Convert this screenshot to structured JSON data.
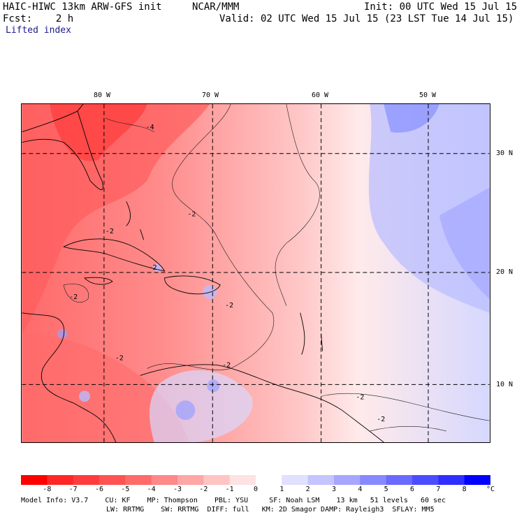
{
  "header": {
    "title": "HAIC-HIWC 13km ARW-GFS init",
    "center": "NCAR/MMM",
    "init": "Init: 00 UTC Wed 15 Jul 15",
    "fcst": "Fcst:    2 h",
    "valid": "Valid: 02 UTC Wed 15 Jul 15 (23 LST Tue 14 Jul 15)",
    "field": "Lifted index"
  },
  "axes": {
    "lon_labels": [
      "80 W",
      "70 W",
      "60 W",
      "50 W"
    ],
    "lat_labels": [
      "30 N",
      "20 N",
      "10 N"
    ]
  },
  "contour_labels": [
    "-4",
    "-2",
    "-2",
    "-2",
    "-2",
    "-2",
    "-2",
    "-2",
    "-2",
    "-2"
  ],
  "colorbar": {
    "labels": [
      "-8",
      "-7",
      "-6",
      "-5",
      "-4",
      "-3",
      "-2",
      "-1",
      "0",
      "1",
      "2",
      "3",
      "4",
      "5",
      "6",
      "7",
      "8"
    ],
    "unit": "°C",
    "colors": [
      "#ff0000",
      "#ff2626",
      "#ff3c3c",
      "#ff5252",
      "#ff6a6a",
      "#ff8888",
      "#ffa6a6",
      "#ffc4c4",
      "#ffe2e2",
      "#ffffff",
      "#e0e0ff",
      "#c4c4ff",
      "#a6a6ff",
      "#8888ff",
      "#6a6aff",
      "#4c4cff",
      "#2e2eff",
      "#0000ff"
    ]
  },
  "model_info": {
    "line1": "Model Info: V3.7    CU: KF    MP: Thompson    PBL: YSU     SF: Noah LSM    13 km   51 levels   60 sec",
    "line2": "LW: RRTMG    SW: RRTMG  DIFF: full   KM: 2D Smagor DAMP: Rayleigh3  SFLAY: MM5"
  }
}
